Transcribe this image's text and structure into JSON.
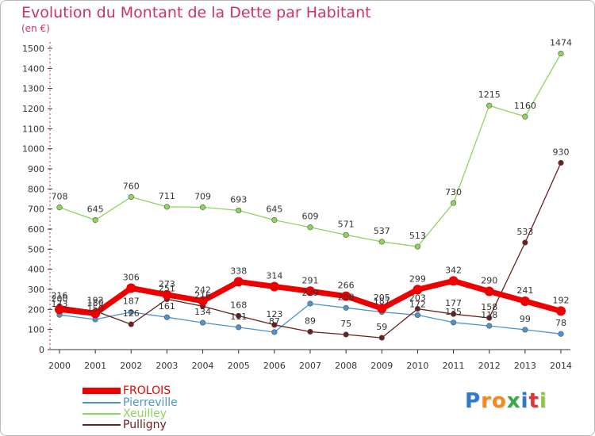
{
  "header": {
    "title": "Evolution du Montant de la Dette par Habitant",
    "subtitle": "(en €)"
  },
  "chart_data": {
    "type": "line",
    "title": "Evolution du Montant de la Dette par Habitant",
    "subtitle": "(en €)",
    "x": [
      "2000",
      "2001",
      "2002",
      "2003",
      "2004",
      "2005",
      "2006",
      "2007",
      "2008",
      "2009",
      "2010",
      "2011",
      "2012",
      "2013",
      "2014"
    ],
    "ylim": [
      0,
      1500
    ],
    "yticks": [
      0,
      100,
      200,
      300,
      400,
      500,
      600,
      700,
      800,
      900,
      1000,
      1100,
      1200,
      1300,
      1400,
      1500
    ],
    "grid": false,
    "legend_position": "bottom-left",
    "series": [
      {
        "name": "FROLOIS",
        "color": "#ee0000",
        "values": [
          200,
          180,
          306,
          273,
          242,
          338,
          314,
          291,
          266,
          205,
          299,
          342,
          290,
          241,
          192
        ],
        "labels": [
          "200",
          "180",
          "306",
          "273",
          "242",
          "338",
          "314",
          "291",
          "266",
          "205",
          "299",
          "342",
          "290",
          "241",
          "192"
        ]
      },
      {
        "name": "Pierreville",
        "color": "#4d94cc",
        "values": [
          173,
          150,
          187,
          161,
          134,
          111,
          87,
          229,
          208,
          187,
          172,
          135,
          118,
          99,
          78
        ],
        "labels": [
          "173",
          "150",
          "187",
          "161",
          "134",
          "111",
          "87",
          "229",
          "208",
          "187",
          "172",
          "135",
          "118",
          "99",
          "78"
        ]
      },
      {
        "name": "Xeuilley",
        "color": "#8fd45a",
        "values": [
          708,
          645,
          760,
          711,
          709,
          693,
          645,
          609,
          571,
          537,
          513,
          730,
          1215,
          1160,
          1474
        ],
        "labels": [
          "708",
          "645",
          "760",
          "711",
          "709",
          "693",
          "645",
          "609",
          "571",
          "537",
          "513",
          "730",
          "1215",
          "1160",
          "1474"
        ]
      },
      {
        "name": "Pulligny",
        "color": "#6b1e1e",
        "values": [
          216,
          192,
          126,
          251,
          216,
          168,
          123,
          89,
          75,
          59,
          203,
          177,
          158,
          533,
          930
        ],
        "labels": [
          "216",
          "192",
          "126",
          "251",
          "216",
          "168",
          "123",
          "89",
          "75",
          "59",
          "203",
          "177",
          "158",
          "533",
          "930"
        ]
      }
    ]
  },
  "logo": {
    "letters": [
      "P",
      "r",
      "o",
      "x",
      "i",
      "t",
      "i"
    ],
    "colors": [
      "#2d7bc4",
      "#f08a1c",
      "#f08a1c",
      "#3aa847",
      "#2d7bc4",
      "#d63b3b",
      "#8fc63f"
    ]
  }
}
